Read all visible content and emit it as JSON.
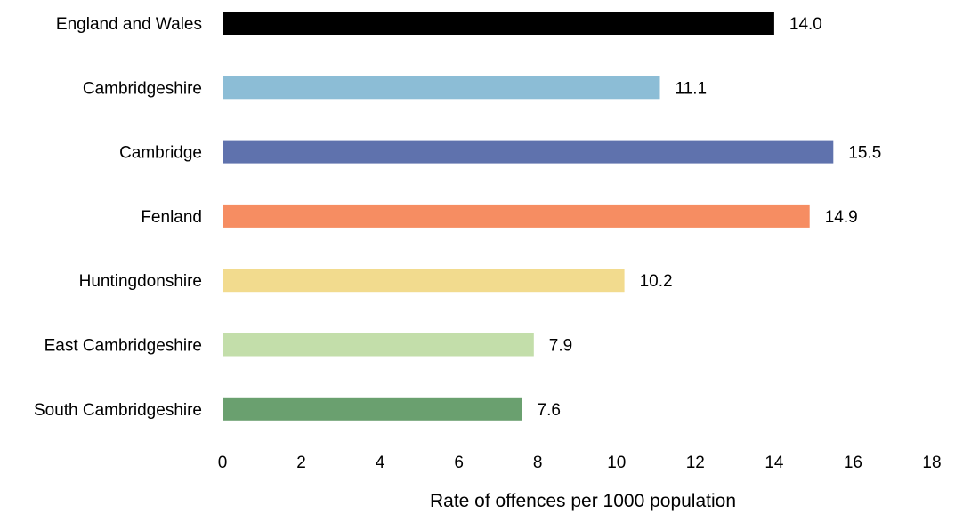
{
  "chart_data": {
    "type": "bar",
    "orientation": "horizontal",
    "title": "",
    "xlabel": "Rate of offences per 1000 population",
    "ylabel": "",
    "xlim": [
      0,
      18
    ],
    "x_ticks": [
      0,
      2,
      4,
      6,
      8,
      10,
      12,
      14,
      16,
      18
    ],
    "grid": false,
    "legend": "none",
    "categories": [
      "England and Wales",
      "Cambridgeshire",
      "Cambridge",
      "Fenland",
      "Huntingdonshire",
      "East Cambridgeshire",
      "South Cambridgeshire"
    ],
    "values": [
      14.0,
      11.1,
      15.5,
      14.9,
      10.2,
      7.9,
      7.6
    ],
    "value_labels": [
      "14.0",
      "11.1",
      "15.5",
      "14.9",
      "10.2",
      "7.9",
      "7.6"
    ],
    "colors": [
      "#000000",
      "#8cbdd6",
      "#5f72ad",
      "#f68d62",
      "#f2db8e",
      "#c3deaa",
      "#6aa06f"
    ]
  }
}
